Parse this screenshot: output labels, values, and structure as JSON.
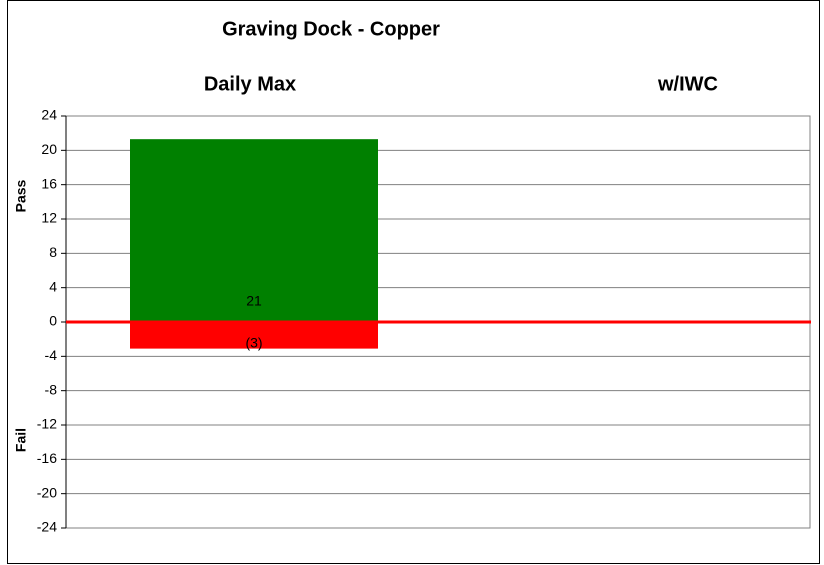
{
  "chart_data": {
    "type": "bar",
    "title": "Graving Dock - Copper",
    "categories": [
      "Daily Max",
      "w/IWC"
    ],
    "y_label_pass": "Pass",
    "y_label_fail": "Fail",
    "series": [
      {
        "color": "#008000",
        "values": [
          21.3,
          null
        ],
        "value_labels": [
          "21",
          null
        ]
      },
      {
        "color": "#ff0000",
        "values": [
          -3.1,
          null
        ],
        "value_labels": [
          "(3)",
          null
        ]
      }
    ],
    "ylim": [
      -24,
      24
    ],
    "yticks": [
      -24,
      -20,
      -16,
      -12,
      -8,
      -4,
      0,
      4,
      8,
      12,
      16,
      20,
      24
    ],
    "grid": true,
    "zero_line_color": "#ff0000"
  }
}
